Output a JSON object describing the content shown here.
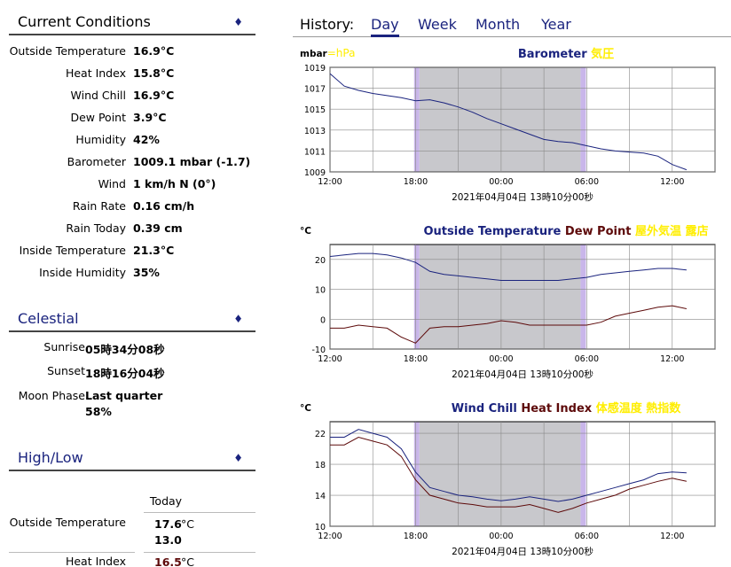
{
  "current": {
    "title": "Current Conditions",
    "rows": [
      {
        "label": "Outside Temperature",
        "value": "16.9°C"
      },
      {
        "label": "Heat Index",
        "value": "15.8°C"
      },
      {
        "label": "Wind Chill",
        "value": "16.9°C"
      },
      {
        "label": "Dew Point",
        "value": "3.9°C"
      },
      {
        "label": "Humidity",
        "value": "42%"
      },
      {
        "label": "Barometer",
        "value": "1009.1 mbar (-1.7)"
      },
      {
        "label": "Wind",
        "value": "1 km/h N (0°)"
      },
      {
        "label": "Rain Rate",
        "value": "0.16 cm/h"
      },
      {
        "label": "Rain Today",
        "value": "0.39 cm"
      },
      {
        "label": "Inside Temperature",
        "value": "21.3°C"
      },
      {
        "label": "Inside Humidity",
        "value": "35%"
      }
    ]
  },
  "celestial": {
    "title": "Celestial",
    "rows": [
      {
        "label": "Sunrise",
        "value": "05時34分08秒"
      },
      {
        "label": "Sunset",
        "value": "18時16分04秒"
      },
      {
        "label": "Moon Phase",
        "value": "Last quarter"
      }
    ],
    "moon_fullness": "58%"
  },
  "highlow": {
    "title": "High/Low",
    "column": "Today",
    "rows": [
      {
        "label": "Outside Temperature",
        "high": "17.6",
        "low": "13.0",
        "unit": "°C"
      },
      {
        "label": "Heat Index",
        "high": "16.5",
        "unit": "°C"
      }
    ]
  },
  "history": {
    "label": "History:",
    "tabs": [
      "Day",
      "Week",
      "Month",
      "Year"
    ],
    "active_tab": "Day"
  },
  "colors": {
    "navy": "#1a237e",
    "darkred": "#5d0a0a",
    "yellow": "#ffee00",
    "night": "#c8c8cc",
    "twilight": "#c9b6ea"
  },
  "chart_data": [
    {
      "type": "line",
      "ylabel": "mbar",
      "ylabel_extra": "=hPa",
      "title_parts": [
        {
          "text": "Barometer ",
          "color": "#1a237e"
        },
        {
          "text": "気圧",
          "color": "#ffee00"
        }
      ],
      "x_ticks": [
        "12:00",
        "18:00",
        "00:00",
        "06:00",
        "12:00"
      ],
      "x_caption": "2021年04月04日 13時10分00秒",
      "y_ticks": [
        1009,
        1011,
        1013,
        1015,
        1017,
        1019
      ],
      "ylim": [
        1009,
        1019
      ],
      "grid": true,
      "series": [
        {
          "color": "#1a237e",
          "x_hours": [
            0,
            1,
            2,
            3,
            4,
            5,
            6,
            7,
            8,
            9,
            10,
            11,
            12,
            13,
            14,
            15,
            16,
            17,
            18,
            19,
            20,
            21,
            22,
            23,
            24,
            25
          ],
          "values": [
            1018.4,
            1017.2,
            1016.8,
            1016.5,
            1016.3,
            1016.1,
            1015.8,
            1015.9,
            1015.6,
            1015.2,
            1014.7,
            1014.1,
            1013.6,
            1013.1,
            1012.6,
            1012.1,
            1011.9,
            1011.8,
            1011.5,
            1011.2,
            1011.0,
            1010.9,
            1010.8,
            1010.5,
            1009.7,
            1009.2
          ]
        }
      ]
    },
    {
      "type": "line",
      "ylabel": "°C",
      "title_parts": [
        {
          "text": "Outside Temperature ",
          "color": "#1a237e"
        },
        {
          "text": "Dew Point ",
          "color": "#5d0a0a"
        },
        {
          "text": "屋外気温 露店",
          "color": "#ffee00"
        }
      ],
      "x_ticks": [
        "12:00",
        "18:00",
        "00:00",
        "06:00",
        "12:00"
      ],
      "x_caption": "2021年04月04日 13時10分00秒",
      "y_ticks": [
        -10,
        0,
        10,
        20
      ],
      "ylim": [
        -10,
        25
      ],
      "grid": true,
      "series": [
        {
          "color": "#1a237e",
          "x_hours": [
            0,
            1,
            2,
            3,
            4,
            5,
            6,
            7,
            8,
            9,
            10,
            11,
            12,
            13,
            14,
            15,
            16,
            17,
            18,
            19,
            20,
            21,
            22,
            23,
            24,
            25
          ],
          "values": [
            21,
            21.5,
            22,
            22,
            21.5,
            20.5,
            19,
            16,
            15,
            14.5,
            14,
            13.5,
            13,
            13,
            13,
            13,
            13,
            13.5,
            14,
            15,
            15.5,
            16,
            16.5,
            17,
            17,
            16.5
          ]
        },
        {
          "color": "#5d0a0a",
          "x_hours": [
            0,
            1,
            2,
            3,
            4,
            5,
            6,
            7,
            8,
            9,
            10,
            11,
            12,
            13,
            14,
            15,
            16,
            17,
            18,
            19,
            20,
            21,
            22,
            23,
            24,
            25
          ],
          "values": [
            -3,
            -3,
            -2,
            -2.5,
            -3,
            -6,
            -8,
            -3,
            -2.5,
            -2.5,
            -2,
            -1.5,
            -0.5,
            -1,
            -2,
            -2,
            -2,
            -2,
            -2,
            -1,
            1,
            2,
            3,
            4,
            4.5,
            3.5
          ]
        }
      ]
    },
    {
      "type": "line",
      "ylabel": "°C",
      "title_parts": [
        {
          "text": "Wind Chill ",
          "color": "#1a237e"
        },
        {
          "text": "Heat Index ",
          "color": "#5d0a0a"
        },
        {
          "text": "体感温度 熱指数",
          "color": "#ffee00"
        }
      ],
      "x_ticks": [
        "12:00",
        "18:00",
        "00:00",
        "06:00",
        "12:00"
      ],
      "x_caption": "2021年04月04日 13時10分00秒",
      "y_ticks": [
        10,
        14,
        18,
        22
      ],
      "ylim": [
        10,
        23.5
      ],
      "grid": true,
      "series": [
        {
          "color": "#1a237e",
          "x_hours": [
            0,
            1,
            2,
            3,
            4,
            5,
            6,
            7,
            8,
            9,
            10,
            11,
            12,
            13,
            14,
            15,
            16,
            17,
            18,
            19,
            20,
            21,
            22,
            23,
            24,
            25
          ],
          "values": [
            21.5,
            21.5,
            22.5,
            22,
            21.5,
            20,
            17,
            15,
            14.5,
            14,
            13.8,
            13.5,
            13.3,
            13.5,
            13.8,
            13.5,
            13.2,
            13.5,
            14,
            14.5,
            15,
            15.5,
            16,
            16.8,
            17,
            16.9
          ]
        },
        {
          "color": "#5d0a0a",
          "x_hours": [
            0,
            1,
            2,
            3,
            4,
            5,
            6,
            7,
            8,
            9,
            10,
            11,
            12,
            13,
            14,
            15,
            16,
            17,
            18,
            19,
            20,
            21,
            22,
            23,
            24,
            25
          ],
          "values": [
            20.5,
            20.5,
            21.5,
            21,
            20.5,
            19,
            16,
            14,
            13.5,
            13,
            12.8,
            12.5,
            12.5,
            12.5,
            12.8,
            12.3,
            11.8,
            12.3,
            13,
            13.5,
            14,
            14.8,
            15.3,
            15.8,
            16.2,
            15.8
          ]
        }
      ]
    }
  ]
}
